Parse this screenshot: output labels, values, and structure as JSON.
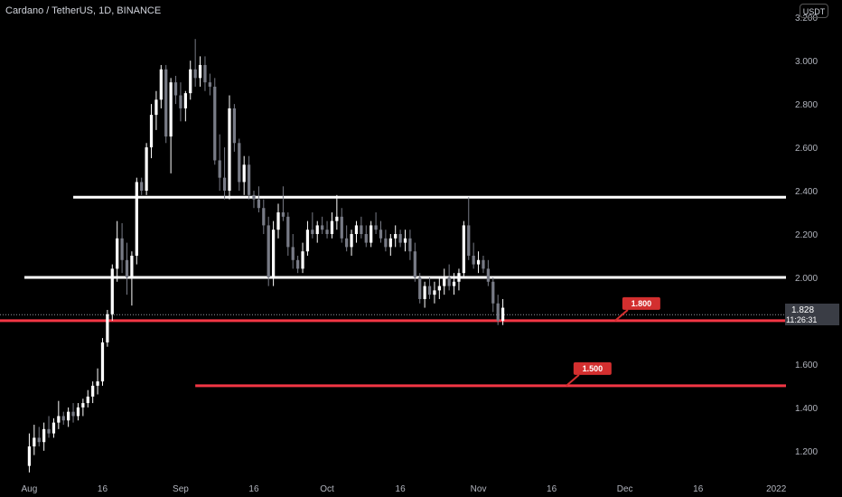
{
  "header": {
    "title": "Cardano / TetherUS, 1D, BINANCE",
    "currency": "USDT"
  },
  "price_tag": {
    "price": "1.828",
    "countdown": "11:26:31"
  },
  "colors": {
    "up": "#ffffff",
    "down": "#787b86",
    "level_white": "#ffffff",
    "level_red": "#f23645",
    "tag_red": "#d32f2f"
  },
  "chart_data": {
    "type": "candlestick",
    "title": "Cardano / TetherUS, 1D, BINANCE",
    "ylim": [
      1.07,
      3.28
    ],
    "y_ticks": [
      "1.200",
      "1.400",
      "1.600",
      "1.800",
      "2.000",
      "2.200",
      "2.400",
      "2.600",
      "2.800",
      "3.000",
      "3.200"
    ],
    "x_ticks": [
      {
        "label": "Aug",
        "day": 0
      },
      {
        "label": "16",
        "day": 15
      },
      {
        "label": "Sep",
        "day": 31
      },
      {
        "label": "16",
        "day": 46
      },
      {
        "label": "Oct",
        "day": 61
      },
      {
        "label": "16",
        "day": 76
      },
      {
        "label": "Nov",
        "day": 92
      },
      {
        "label": "16",
        "day": 107
      },
      {
        "label": "Dec",
        "day": 122
      },
      {
        "label": "16",
        "day": 137
      },
      {
        "label": "2022",
        "day": 153
      }
    ],
    "day_range": [
      -6,
      155
    ],
    "candles": [
      [
        1.13,
        1.28,
        1.1,
        1.22
      ],
      [
        1.22,
        1.32,
        1.18,
        1.26
      ],
      [
        1.26,
        1.31,
        1.22,
        1.24
      ],
      [
        1.24,
        1.33,
        1.2,
        1.3
      ],
      [
        1.3,
        1.36,
        1.26,
        1.28
      ],
      [
        1.28,
        1.35,
        1.26,
        1.33
      ],
      [
        1.33,
        1.43,
        1.3,
        1.36
      ],
      [
        1.36,
        1.38,
        1.32,
        1.34
      ],
      [
        1.34,
        1.4,
        1.31,
        1.38
      ],
      [
        1.38,
        1.42,
        1.33,
        1.36
      ],
      [
        1.36,
        1.42,
        1.34,
        1.4
      ],
      [
        1.4,
        1.44,
        1.36,
        1.42
      ],
      [
        1.42,
        1.48,
        1.4,
        1.45
      ],
      [
        1.45,
        1.52,
        1.42,
        1.5
      ],
      [
        1.5,
        1.58,
        1.46,
        1.52
      ],
      [
        1.52,
        1.72,
        1.5,
        1.7
      ],
      [
        1.7,
        1.85,
        1.68,
        1.83
      ],
      [
        1.83,
        2.06,
        1.8,
        2.04
      ],
      [
        2.04,
        2.26,
        1.98,
        2.18
      ],
      [
        2.18,
        2.25,
        2.02,
        2.08
      ],
      [
        2.08,
        2.16,
        1.92,
        2.0
      ],
      [
        2.0,
        2.12,
        1.87,
        2.1
      ],
      [
        2.1,
        2.46,
        2.06,
        2.44
      ],
      [
        2.44,
        2.46,
        2.38,
        2.4
      ],
      [
        2.4,
        2.62,
        2.38,
        2.6
      ],
      [
        2.6,
        2.8,
        2.55,
        2.75
      ],
      [
        2.75,
        2.86,
        2.68,
        2.82
      ],
      [
        2.82,
        2.98,
        2.78,
        2.96
      ],
      [
        2.96,
        2.98,
        2.62,
        2.65
      ],
      [
        2.65,
        2.92,
        2.48,
        2.9
      ],
      [
        2.9,
        2.93,
        2.8,
        2.84
      ],
      [
        2.84,
        2.9,
        2.72,
        2.78
      ],
      [
        2.78,
        2.86,
        2.72,
        2.85
      ],
      [
        2.85,
        3.0,
        2.82,
        2.96
      ],
      [
        2.96,
        3.1,
        2.88,
        2.92
      ],
      [
        2.92,
        3.02,
        2.88,
        2.98
      ],
      [
        2.98,
        3.02,
        2.86,
        2.9
      ],
      [
        2.9,
        2.94,
        2.84,
        2.88
      ],
      [
        2.88,
        2.92,
        2.52,
        2.54
      ],
      [
        2.54,
        2.66,
        2.4,
        2.46
      ],
      [
        2.46,
        2.6,
        2.36,
        2.4
      ],
      [
        2.4,
        2.84,
        2.36,
        2.78
      ],
      [
        2.78,
        2.8,
        2.58,
        2.62
      ],
      [
        2.62,
        2.64,
        2.4,
        2.44
      ],
      [
        2.44,
        2.56,
        2.38,
        2.52
      ],
      [
        2.52,
        2.56,
        2.36,
        2.38
      ],
      [
        2.38,
        2.4,
        2.32,
        2.36
      ],
      [
        2.36,
        2.42,
        2.3,
        2.32
      ],
      [
        2.32,
        2.36,
        2.2,
        2.24
      ],
      [
        2.24,
        2.28,
        1.96,
        2.0
      ],
      [
        2.0,
        2.26,
        1.96,
        2.22
      ],
      [
        2.22,
        2.34,
        2.18,
        2.3
      ],
      [
        2.3,
        2.42,
        2.26,
        2.28
      ],
      [
        2.28,
        2.3,
        2.1,
        2.14
      ],
      [
        2.14,
        2.2,
        2.04,
        2.08
      ],
      [
        2.08,
        2.1,
        2.02,
        2.04
      ],
      [
        2.04,
        2.16,
        2.02,
        2.12
      ],
      [
        2.12,
        2.26,
        2.1,
        2.22
      ],
      [
        2.22,
        2.3,
        2.18,
        2.2
      ],
      [
        2.2,
        2.26,
        2.16,
        2.24
      ],
      [
        2.24,
        2.28,
        2.2,
        2.22
      ],
      [
        2.22,
        2.26,
        2.18,
        2.2
      ],
      [
        2.2,
        2.3,
        2.18,
        2.26
      ],
      [
        2.26,
        2.38,
        2.22,
        2.28
      ],
      [
        2.28,
        2.32,
        2.16,
        2.18
      ],
      [
        2.18,
        2.24,
        2.12,
        2.14
      ],
      [
        2.14,
        2.22,
        2.1,
        2.2
      ],
      [
        2.2,
        2.26,
        2.16,
        2.24
      ],
      [
        2.24,
        2.28,
        2.18,
        2.2
      ],
      [
        2.2,
        2.24,
        2.14,
        2.16
      ],
      [
        2.16,
        2.26,
        2.14,
        2.24
      ],
      [
        2.24,
        2.3,
        2.2,
        2.22
      ],
      [
        2.22,
        2.26,
        2.16,
        2.18
      ],
      [
        2.18,
        2.22,
        2.12,
        2.14
      ],
      [
        2.14,
        2.2,
        2.1,
        2.18
      ],
      [
        2.18,
        2.24,
        2.14,
        2.2
      ],
      [
        2.2,
        2.22,
        2.14,
        2.16
      ],
      [
        2.16,
        2.22,
        2.12,
        2.18
      ],
      [
        2.18,
        2.22,
        2.08,
        2.12
      ],
      [
        2.12,
        2.16,
        1.98,
        2.0
      ],
      [
        2.0,
        2.02,
        1.88,
        1.9
      ],
      [
        1.9,
        1.98,
        1.86,
        1.96
      ],
      [
        1.96,
        2.0,
        1.9,
        1.92
      ],
      [
        1.92,
        1.98,
        1.88,
        1.94
      ],
      [
        1.94,
        2.0,
        1.9,
        1.96
      ],
      [
        1.96,
        2.04,
        1.92,
        2.0
      ],
      [
        2.0,
        2.06,
        1.94,
        1.96
      ],
      [
        1.96,
        2.02,
        1.92,
        1.98
      ],
      [
        1.98,
        2.04,
        1.94,
        2.02
      ],
      [
        2.02,
        2.26,
        2.0,
        2.24
      ],
      [
        2.24,
        2.37,
        2.08,
        2.1
      ],
      [
        2.1,
        2.16,
        2.04,
        2.06
      ],
      [
        2.06,
        2.12,
        2.02,
        2.08
      ],
      [
        2.08,
        2.1,
        2.02,
        2.04
      ],
      [
        2.04,
        2.08,
        1.96,
        1.98
      ],
      [
        1.98,
        2.0,
        1.84,
        1.88
      ],
      [
        1.88,
        1.92,
        1.78,
        1.8
      ],
      [
        1.8,
        1.9,
        1.78,
        1.86
      ]
    ],
    "levels": [
      {
        "price": 2.37,
        "color": "white",
        "from_day": 9,
        "to_day": null
      },
      {
        "price": 2.0,
        "color": "white",
        "from_day": -1,
        "to_day": null
      },
      {
        "price": 1.8,
        "color": "red",
        "from_day": null,
        "to_day": null
      },
      {
        "price": 1.5,
        "color": "red",
        "from_day": 34,
        "to_day": null
      }
    ],
    "labels": [
      {
        "text": "1.800",
        "day": 120,
        "price": 1.8
      },
      {
        "text": "1.500",
        "day": 110,
        "price": 1.5
      }
    ],
    "last_price": 1.828
  }
}
